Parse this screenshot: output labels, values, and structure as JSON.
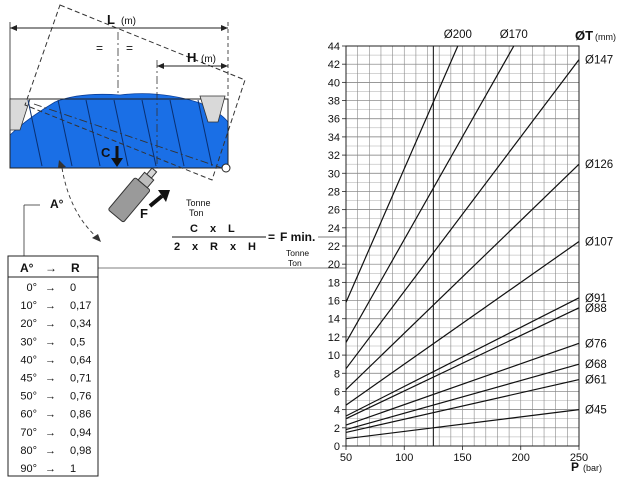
{
  "left_diagram": {
    "length_label": "L",
    "length_unit": "(m)",
    "half_marks": [
      "=",
      "="
    ],
    "height_label": "H",
    "height_unit": "(m)",
    "c_label": "C",
    "f_label": "F",
    "angle_label": "A°",
    "water_color": "#1a6fe6"
  },
  "formula": {
    "unit_top_1": "Tonne",
    "unit_top_2": "Ton",
    "numerator": [
      "C",
      "x",
      "L"
    ],
    "denominator": [
      "2",
      "x",
      "R",
      "x",
      "H"
    ],
    "equals": "=",
    "result": "F min.",
    "unit_bottom_1": "Tonne",
    "unit_bottom_2": "Ton"
  },
  "angle_table": {
    "header_a": "A°",
    "arrow": "→",
    "header_r": "R",
    "rows": [
      {
        "a": "0°",
        "r": "0"
      },
      {
        "a": "10°",
        "r": "0,17"
      },
      {
        "a": "20°",
        "r": "0,34"
      },
      {
        "a": "30°",
        "r": "0,5"
      },
      {
        "a": "40°",
        "r": "0,64"
      },
      {
        "a": "45°",
        "r": "0,71"
      },
      {
        "a": "50°",
        "r": "0,76"
      },
      {
        "a": "60°",
        "r": "0,86"
      },
      {
        "a": "70°",
        "r": "0,94"
      },
      {
        "a": "80°",
        "r": "0,98"
      },
      {
        "a": "90°",
        "r": "1"
      }
    ]
  },
  "chart_data": {
    "type": "line",
    "title": "",
    "xlabel": "P",
    "xunit": "(bar)",
    "ylabel": "",
    "xlim": [
      50,
      250
    ],
    "ylim": [
      0,
      44
    ],
    "x_ticks": [
      "50",
      "100",
      "150",
      "200",
      "250"
    ],
    "y_ticks": [
      "0",
      "2",
      "4",
      "6",
      "8",
      "10",
      "12",
      "14",
      "16",
      "18",
      "20",
      "22",
      "24",
      "26",
      "28",
      "30",
      "32",
      "34",
      "36",
      "38",
      "40",
      "42",
      "44"
    ],
    "grid": true,
    "diameter_axis_label": "ØT",
    "diameter_axis_unit": "(mm)",
    "series": [
      {
        "name": "Ø45",
        "x": [
          50,
          250
        ],
        "y": [
          0.8,
          4.0
        ]
      },
      {
        "name": "Ø61",
        "x": [
          50,
          250
        ],
        "y": [
          1.5,
          7.3
        ]
      },
      {
        "name": "Ø68",
        "x": [
          50,
          250
        ],
        "y": [
          1.8,
          9.0
        ]
      },
      {
        "name": "Ø76",
        "x": [
          50,
          250
        ],
        "y": [
          2.3,
          11.3
        ]
      },
      {
        "name": "Ø88",
        "x": [
          50,
          250
        ],
        "y": [
          3.0,
          15.2
        ]
      },
      {
        "name": "Ø91",
        "x": [
          50,
          250
        ],
        "y": [
          3.3,
          16.3
        ]
      },
      {
        "name": "Ø107",
        "x": [
          50,
          250
        ],
        "y": [
          4.5,
          22.5
        ]
      },
      {
        "name": "Ø126",
        "x": [
          50,
          250
        ],
        "y": [
          6.2,
          31.0
        ]
      },
      {
        "name": "Ø147",
        "x": [
          50,
          250
        ],
        "y": [
          8.5,
          42.5
        ]
      },
      {
        "name": "Ø170",
        "x": [
          50,
          194
        ],
        "y": [
          11.4,
          44.0
        ]
      },
      {
        "name": "Ø200",
        "x": [
          50,
          146
        ],
        "y": [
          15.8,
          44.0
        ]
      }
    ]
  }
}
